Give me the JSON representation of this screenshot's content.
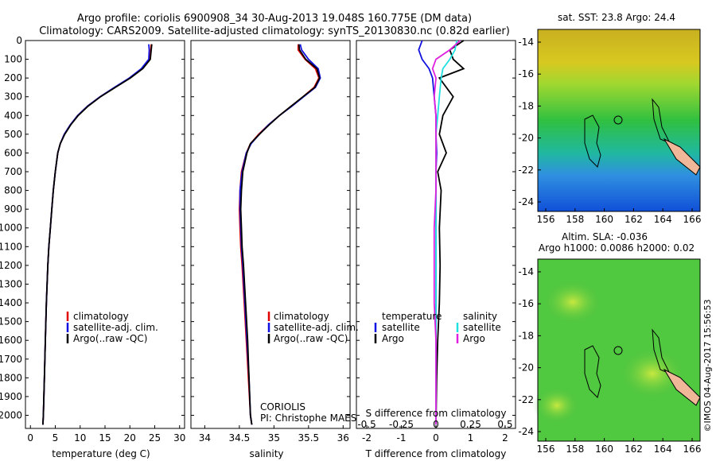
{
  "title_line1": "Argo profile: coriolis 6900908_34 30-Aug-2013 19.048S 160.775E (DM data)",
  "title_line2": "Climatology: CARS2009. Satellite-adjusted climatology: synTS_20130830.nc (0.82d earlier)",
  "colors": {
    "climatology": "#e00000",
    "satellite": "#1010e0",
    "argo": "#000000",
    "sal_satellite": "#20e0e0",
    "sal_argo": "#e020e0"
  },
  "depth_ticks": [
    0,
    100,
    200,
    300,
    400,
    500,
    600,
    700,
    800,
    900,
    1000,
    1100,
    1200,
    1300,
    1400,
    1500,
    1600,
    1700,
    1800,
    1900,
    2000
  ],
  "legend": {
    "climatology": "climatology",
    "satellite": "satellite-adj. clim.",
    "argo": "Argo(..raw -QC)"
  },
  "diff_legend": {
    "temperature": "temperature",
    "salinity": "salinity",
    "satellite": "satellite",
    "argo": "Argo"
  },
  "annot": {
    "center": "CORIOLIS",
    "pi": "PI: Christophe MAES"
  },
  "map1": {
    "title": "sat. SST: 23.8 Argo: 24.4"
  },
  "map2": {
    "title1": "Altim. SLA: -0.036",
    "title2": "Argo h1000: 0.0086 h2000: 0.02"
  },
  "map_yticks": [
    "-14",
    "-16",
    "-18",
    "-20",
    "-22",
    "-24"
  ],
  "map_xticks": [
    "156",
    "158",
    "160",
    "162",
    "164",
    "166"
  ],
  "credit": "©IMOS 04-Aug-2017 15:56:53",
  "chart_data": [
    {
      "type": "line",
      "xlabel": "temperature (deg C)",
      "ylabel": "",
      "xlim": [
        -1,
        31
      ],
      "ylim": [
        2070,
        0
      ],
      "xticks": [
        0,
        5,
        10,
        15,
        20,
        25,
        30
      ],
      "series": [
        {
          "name": "climatology",
          "x": [
            24.3,
            24.2,
            24.0,
            22.5,
            20.0,
            17.0,
            14.0,
            11.5,
            9.5,
            8.0,
            6.8,
            6.0,
            5.5,
            5.0,
            4.6,
            4.3,
            4.0,
            3.7,
            3.5,
            3.2,
            3.0,
            2.8,
            2.6,
            2.5
          ],
          "y": [
            20,
            50,
            100,
            150,
            200,
            250,
            300,
            350,
            400,
            450,
            500,
            550,
            600,
            700,
            800,
            900,
            1000,
            1100,
            1200,
            1400,
            1600,
            1800,
            2000,
            2050
          ]
        },
        {
          "name": "satellite-adj. clim.",
          "x": [
            23.8,
            23.9,
            23.8,
            22.3,
            19.9,
            16.9,
            14.0,
            11.5,
            9.5,
            8.0,
            6.8,
            6.0,
            5.5,
            5.0,
            4.6,
            4.3,
            4.0,
            3.7,
            3.5,
            3.2,
            3.0,
            2.8,
            2.6,
            2.5
          ],
          "y": [
            20,
            50,
            100,
            150,
            200,
            250,
            300,
            350,
            400,
            450,
            500,
            550,
            600,
            700,
            800,
            900,
            1000,
            1100,
            1200,
            1400,
            1600,
            1800,
            2000,
            2050
          ]
        },
        {
          "name": "Argo(..raw -QC)",
          "x": [
            24.4,
            24.3,
            24.1,
            22.6,
            20.1,
            17.1,
            14.1,
            11.6,
            9.6,
            8.1,
            6.9,
            6.0,
            5.5,
            5.0,
            4.6,
            4.3,
            4.0,
            3.7,
            3.5,
            3.2,
            3.0,
            2.8,
            2.6,
            2.5
          ],
          "y": [
            20,
            50,
            100,
            150,
            200,
            250,
            300,
            350,
            400,
            450,
            500,
            550,
            600,
            700,
            800,
            900,
            1000,
            1100,
            1200,
            1400,
            1600,
            1800,
            2000,
            2050
          ]
        }
      ]
    },
    {
      "type": "line",
      "xlabel": "salinity",
      "ylabel": "",
      "xlim": [
        33.8,
        36.1
      ],
      "ylim": [
        2070,
        0
      ],
      "xticks": [
        34,
        34.5,
        35,
        35.5,
        36
      ],
      "series": [
        {
          "name": "climatology",
          "x": [
            35.35,
            35.35,
            35.45,
            35.6,
            35.65,
            35.58,
            35.42,
            35.25,
            35.08,
            34.92,
            34.78,
            34.66,
            34.6,
            34.53,
            34.51,
            34.5,
            34.51,
            34.52,
            34.54,
            34.57,
            34.6,
            34.63,
            34.66,
            34.68
          ],
          "y": [
            20,
            50,
            100,
            150,
            200,
            250,
            300,
            350,
            400,
            450,
            500,
            550,
            600,
            700,
            800,
            900,
            1000,
            1100,
            1200,
            1400,
            1600,
            1800,
            2000,
            2050
          ]
        },
        {
          "name": "satellite-adj. clim.",
          "x": [
            35.38,
            35.4,
            35.5,
            35.64,
            35.67,
            35.6,
            35.43,
            35.26,
            35.08,
            34.92,
            34.79,
            34.67,
            34.6,
            34.54,
            34.51,
            34.51,
            34.52,
            34.53,
            34.55,
            34.58,
            34.61,
            34.64,
            34.66,
            34.68
          ],
          "y": [
            20,
            50,
            100,
            150,
            200,
            250,
            300,
            350,
            400,
            450,
            500,
            550,
            600,
            700,
            800,
            900,
            1000,
            1100,
            1200,
            1400,
            1600,
            1800,
            2000,
            2050
          ]
        },
        {
          "name": "Argo(..raw -QC)",
          "x": [
            35.36,
            35.37,
            35.46,
            35.62,
            35.66,
            35.59,
            35.42,
            35.25,
            35.08,
            34.93,
            34.79,
            34.66,
            34.61,
            34.55,
            34.53,
            34.52,
            34.53,
            34.54,
            34.56,
            34.59,
            34.62,
            34.64,
            34.66,
            34.68
          ],
          "y": [
            20,
            50,
            100,
            150,
            200,
            250,
            300,
            350,
            400,
            450,
            500,
            550,
            600,
            700,
            800,
            900,
            1000,
            1100,
            1200,
            1400,
            1600,
            1800,
            2000,
            2050
          ]
        }
      ]
    },
    {
      "type": "line",
      "xlabel": "T difference from climatology",
      "xlabel_top": "S difference from climatology",
      "ylabel": "",
      "xlim": [
        -2.3,
        2.3
      ],
      "ylim": [
        2070,
        0
      ],
      "xticks": [
        -2,
        -1,
        0,
        1,
        2
      ],
      "s_xticks": [
        "-0.5",
        "-0.25",
        "0",
        "0.25",
        "0.5"
      ],
      "series": [
        {
          "name": "T satellite",
          "x": [
            -0.4,
            -0.5,
            -0.4,
            -0.2,
            -0.1,
            -0.05,
            0,
            0,
            0.02,
            0,
            0,
            0,
            0,
            0,
            0,
            0,
            0
          ],
          "y": [
            0,
            50,
            100,
            150,
            200,
            300,
            400,
            500,
            600,
            700,
            800,
            1000,
            1200,
            1400,
            1600,
            1800,
            2050
          ]
        },
        {
          "name": "T Argo",
          "x": [
            0.8,
            0.4,
            0.5,
            0.8,
            0.1,
            0.5,
            0.2,
            0.1,
            0.3,
            0.05,
            0.15,
            0.1,
            0.12,
            0.1,
            0.05,
            0.02,
            0.0
          ],
          "y": [
            0,
            50,
            100,
            150,
            200,
            300,
            400,
            500,
            600,
            700,
            800,
            1000,
            1200,
            1400,
            1600,
            1800,
            2050
          ]
        },
        {
          "name": "S satellite",
          "x": [
            0.6,
            0.55,
            0.4,
            0.2,
            0.15,
            0.1,
            0.05,
            0,
            0,
            0,
            0,
            0,
            0,
            0,
            0,
            0,
            0
          ],
          "y": [
            0,
            50,
            100,
            150,
            200,
            300,
            400,
            500,
            600,
            700,
            800,
            1000,
            1200,
            1400,
            1600,
            1800,
            2050
          ]
        },
        {
          "name": "S Argo",
          "x": [
            0.7,
            0.4,
            0.0,
            -0.1,
            0.0,
            -0.05,
            0,
            0,
            0,
            0,
            0,
            -0.05,
            -0.05,
            -0.05,
            0,
            0,
            0
          ],
          "y": [
            0,
            50,
            100,
            150,
            200,
            300,
            400,
            500,
            600,
            700,
            800,
            1000,
            1200,
            1400,
            1600,
            1800,
            2050
          ]
        }
      ]
    }
  ]
}
